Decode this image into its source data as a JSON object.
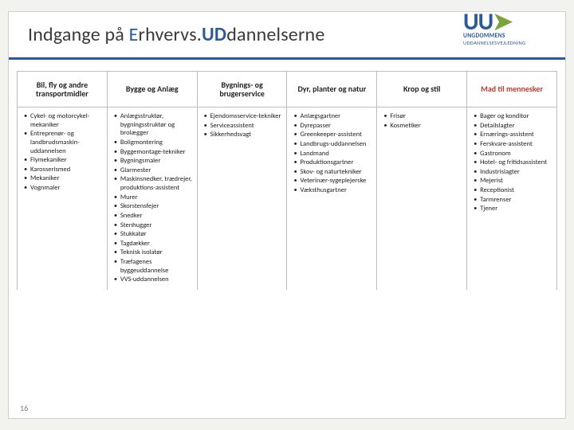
{
  "title": {
    "pre": "Indgange på ",
    "e": "E",
    "mid1": "rhvervs.",
    "ud": "UD",
    "post": "dannelserne"
  },
  "logo": {
    "main": "UU",
    "sub1": "UNGDOMMENS",
    "sub2": "UDDANNELSESVEJLEDNING"
  },
  "page_number": "16",
  "columns": [
    {
      "header": "Bil, fly og andre transportmidler",
      "items": [
        "Cykel- og motorcykel-mekaniker",
        "Entreprenør- og landbrudsmaskin-uddannelsen",
        "Flymekaniker",
        "Karosserismed",
        "Mekaniker",
        "Vognmaler"
      ]
    },
    {
      "header": "Bygge og Anlæg",
      "items": [
        "Anlægsstruktør, bygningsstruktør og brolægger",
        "Boligmontering",
        "Byggemontage-tekniker",
        "Bygningsmaler",
        "Glarmester",
        "Maskinsnedker, trædrejer, produktions-assistent",
        "Murer",
        "Skorstensfejer",
        "Snedker",
        "Stenhugger",
        "Stukkatør",
        "Tagdækker",
        "Teknisk isolatør",
        "Træfagenes byggeuddannelse",
        "VVS-uddannelsen"
      ]
    },
    {
      "header": "Bygnings- og brugerservice",
      "items": [
        "Ejendomsservice-tekniker",
        "Serviceassistent",
        "Sikkerhedsvagt"
      ]
    },
    {
      "header": "Dyr, planter og natur",
      "items": [
        "Anlægsgartner",
        "Dyrepasser",
        "Greenkeeper-assistent",
        "Landbrugs-uddannelsen",
        "Landmand",
        "Produktionsgartner",
        "Skov- og naturtekniker",
        "Veterinær-sygeplejerske",
        "Væksthusgartner"
      ]
    },
    {
      "header": "Krop og stil",
      "items": [
        "Frisør",
        "Kosmetiker"
      ]
    },
    {
      "header": "Mad til mennesker",
      "items": [
        "Bager og konditor",
        "Detailslagter",
        "Ernærings-assistent",
        "Ferskvare-assistent",
        "Gastronom",
        "Hotel- og fritidsassistent",
        "Industrislagter",
        "Mejerist",
        "Receptionist",
        "Tarmrenser",
        "Tjener"
      ]
    }
  ],
  "colors": {
    "rule": "#2a5a9c",
    "accent_red": "#c0392b",
    "border": "#bdbdbd",
    "bg": "#ffffff"
  }
}
